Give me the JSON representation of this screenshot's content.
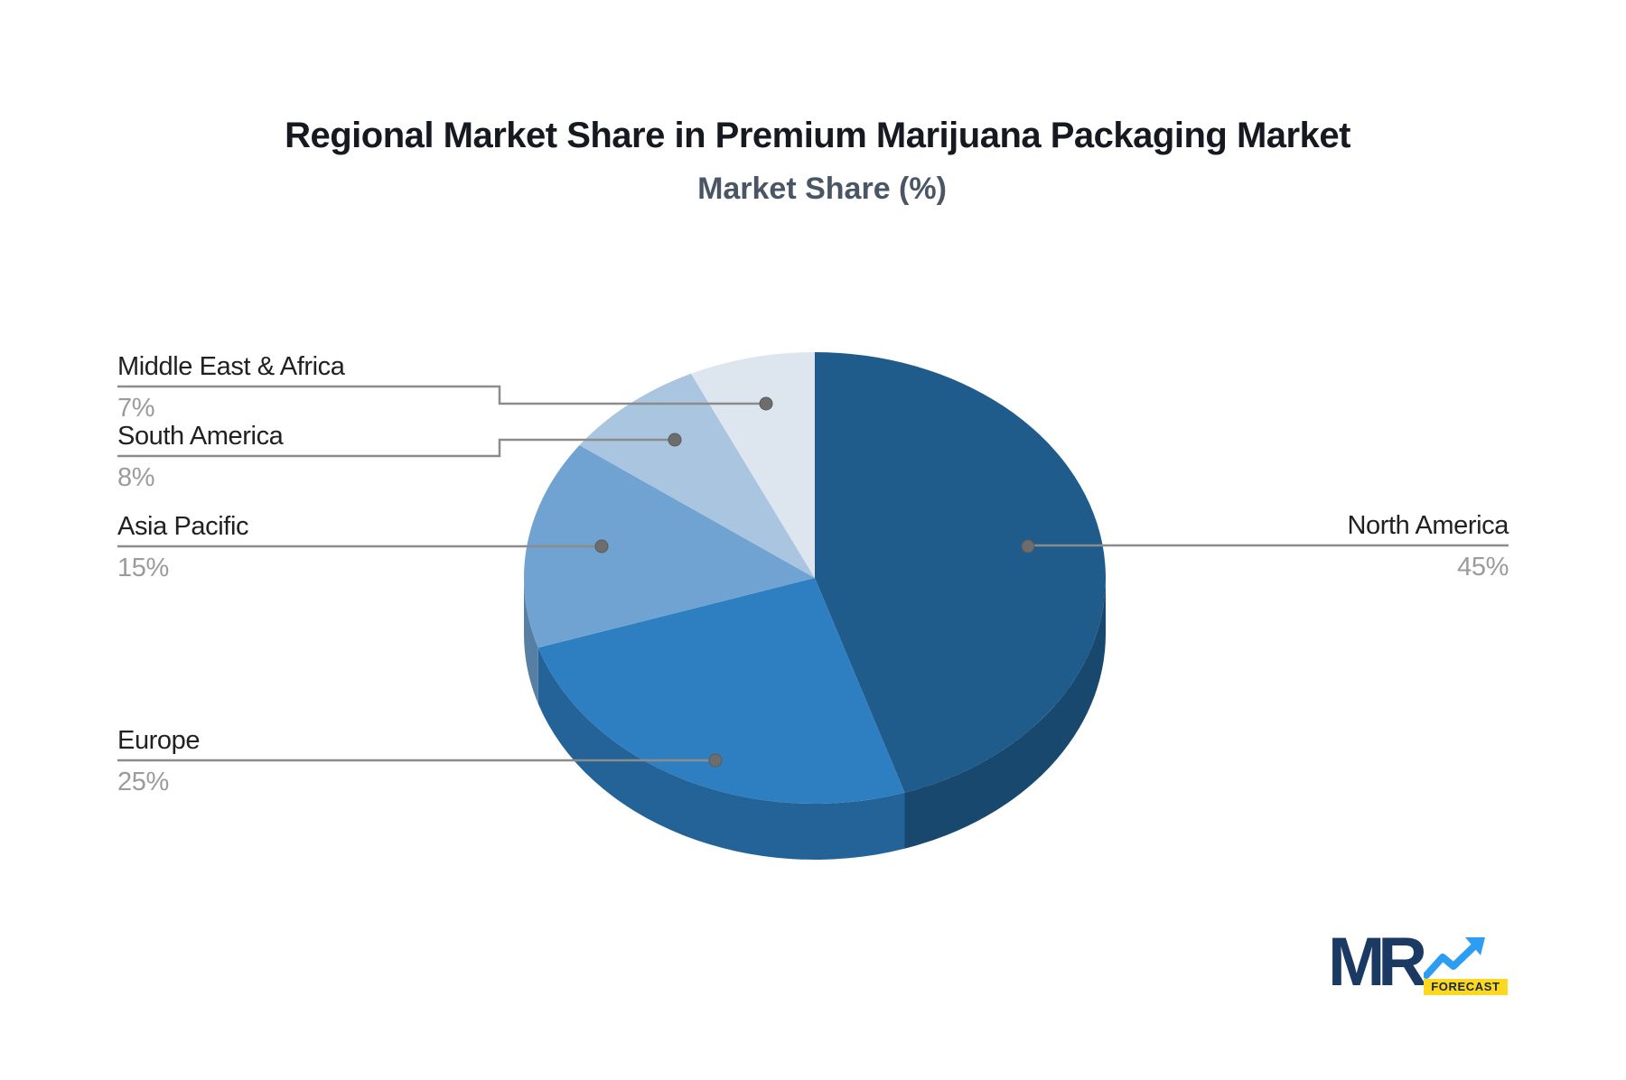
{
  "title": "Regional Market Share in Premium Marijuana Packaging Market",
  "subtitle": "Market Share (%)",
  "chart_data": {
    "type": "pie",
    "style": "3d",
    "title": "Regional Market Share in Premium Marijuana Packaging Market",
    "subtitle": "Market Share (%)",
    "unit": "%",
    "start_angle_deg": 0,
    "direction": "clockwise",
    "legend_position": "callout-labels",
    "regions": [
      {
        "label": "North America",
        "value": 45,
        "pct": "45%",
        "color": "#1f5c8c"
      },
      {
        "label": "Europe",
        "value": 25,
        "pct": "25%",
        "color": "#2e7fc1"
      },
      {
        "label": "Asia Pacific",
        "value": 15,
        "pct": "15%",
        "color": "#70a3d2"
      },
      {
        "label": "South America",
        "value": 8,
        "pct": "8%",
        "color": "#a9c5df"
      },
      {
        "label": "Middle East & Africa",
        "value": 7,
        "pct": "7%",
        "color": "#dde6ee"
      }
    ]
  },
  "colors": {
    "background": "#ffffff",
    "title_text": "#16191f",
    "subtitle_text": "#4a5666",
    "label_text": "#212121",
    "percent_text": "#9b9b9b",
    "connector_line": "#8c8c8c",
    "connector_dot": "#6d6d6d",
    "logo_navy": "#1a3a64",
    "logo_arrow_blue": "#2d9cf3",
    "logo_badge_yellow": "#ffd81e"
  },
  "logo": {
    "text": "MR",
    "badge": "FORECAST"
  }
}
